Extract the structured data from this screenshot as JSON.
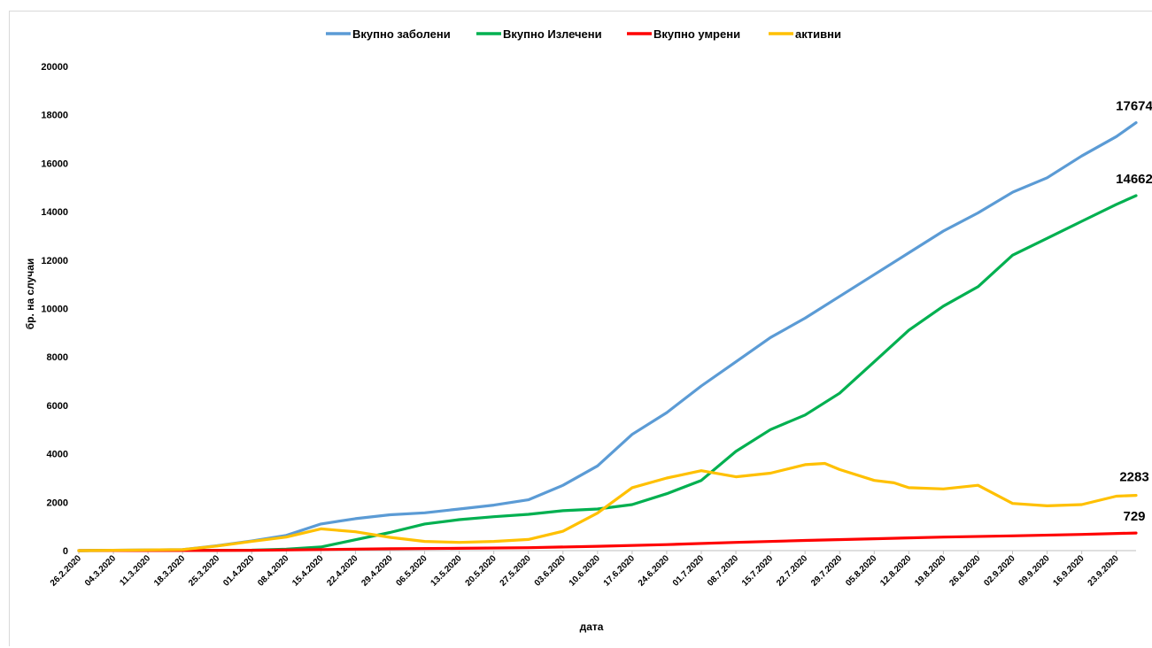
{
  "chart_data": {
    "type": "line",
    "title": "",
    "xlabel": "дата",
    "ylabel": "бр. на случаи",
    "ylim": [
      0,
      20000
    ],
    "yticks": [
      0,
      2000,
      4000,
      6000,
      8000,
      10000,
      12000,
      14000,
      16000,
      18000,
      20000
    ],
    "legend_position": "top",
    "grid": false,
    "x_start": "26.2.2020",
    "x_end": "27.9.2020",
    "x_tick_labels": [
      "26.2.2020",
      "04.3.2020",
      "11.3.2020",
      "18.3.2020",
      "25.3.2020",
      "01.4.2020",
      "08.4.2020",
      "15.4.2020",
      "22.4.2020",
      "29.4.2020",
      "06.5.2020",
      "13.5.2020",
      "20.5.2020",
      "27.5.2020",
      "03.6.2020",
      "10.6.2020",
      "17.6.2020",
      "24.6.2020",
      "01.7.2020",
      "08.7.2020",
      "15.7.2020",
      "22.7.2020",
      "29.7.2020",
      "05.8.2020",
      "12.8.2020",
      "19.8.2020",
      "26.8.2020",
      "02.9.2020",
      "09.9.2020",
      "16.9.2020",
      "23.9.2020"
    ],
    "series": [
      {
        "name": "Вкупно заболени",
        "color": "#5b9bd5",
        "end_label": "17674",
        "points": [
          [
            "26.2.2020",
            0
          ],
          [
            "18.3.2020",
            40
          ],
          [
            "25.3.2020",
            200
          ],
          [
            "01.4.2020",
            400
          ],
          [
            "08.4.2020",
            630
          ],
          [
            "15.4.2020",
            1100
          ],
          [
            "22.4.2020",
            1320
          ],
          [
            "29.4.2020",
            1480
          ],
          [
            "06.5.2020",
            1560
          ],
          [
            "13.5.2020",
            1720
          ],
          [
            "20.5.2020",
            1880
          ],
          [
            "27.5.2020",
            2100
          ],
          [
            "03.6.2020",
            2700
          ],
          [
            "10.6.2020",
            3500
          ],
          [
            "17.6.2020",
            4800
          ],
          [
            "24.6.2020",
            5700
          ],
          [
            "01.7.2020",
            6800
          ],
          [
            "08.7.2020",
            7800
          ],
          [
            "15.7.2020",
            8800
          ],
          [
            "22.7.2020",
            9600
          ],
          [
            "29.7.2020",
            10500
          ],
          [
            "05.8.2020",
            11400
          ],
          [
            "12.8.2020",
            12300
          ],
          [
            "19.8.2020",
            13200
          ],
          [
            "26.8.2020",
            13950
          ],
          [
            "02.9.2020",
            14800
          ],
          [
            "09.9.2020",
            15400
          ],
          [
            "16.9.2020",
            16300
          ],
          [
            "23.9.2020",
            17100
          ],
          [
            "27.9.2020",
            17674
          ]
        ]
      },
      {
        "name": "Вкупно Излечени",
        "color": "#00b050",
        "end_label": "14662",
        "points": [
          [
            "26.2.2020",
            0
          ],
          [
            "01.4.2020",
            20
          ],
          [
            "08.4.2020",
            60
          ],
          [
            "15.4.2020",
            150
          ],
          [
            "22.4.2020",
            450
          ],
          [
            "29.4.2020",
            750
          ],
          [
            "06.5.2020",
            1100
          ],
          [
            "13.5.2020",
            1280
          ],
          [
            "20.5.2020",
            1400
          ],
          [
            "27.5.2020",
            1500
          ],
          [
            "03.6.2020",
            1650
          ],
          [
            "10.6.2020",
            1720
          ],
          [
            "17.6.2020",
            1900
          ],
          [
            "24.6.2020",
            2350
          ],
          [
            "01.7.2020",
            2900
          ],
          [
            "08.7.2020",
            4100
          ],
          [
            "15.7.2020",
            5000
          ],
          [
            "22.7.2020",
            5600
          ],
          [
            "29.7.2020",
            6500
          ],
          [
            "05.8.2020",
            7800
          ],
          [
            "12.8.2020",
            9100
          ],
          [
            "19.8.2020",
            10100
          ],
          [
            "26.8.2020",
            10900
          ],
          [
            "02.9.2020",
            12200
          ],
          [
            "09.9.2020",
            12900
          ],
          [
            "16.9.2020",
            13600
          ],
          [
            "23.9.2020",
            14300
          ],
          [
            "27.9.2020",
            14662
          ]
        ]
      },
      {
        "name": "Вкупно умрени",
        "color": "#ff0000",
        "end_label": "729",
        "points": [
          [
            "26.2.2020",
            0
          ],
          [
            "01.4.2020",
            10
          ],
          [
            "15.4.2020",
            45
          ],
          [
            "29.4.2020",
            75
          ],
          [
            "13.5.2020",
            95
          ],
          [
            "27.5.2020",
            120
          ],
          [
            "10.6.2020",
            180
          ],
          [
            "24.6.2020",
            250
          ],
          [
            "08.7.2020",
            340
          ],
          [
            "22.7.2020",
            420
          ],
          [
            "05.8.2020",
            490
          ],
          [
            "19.8.2020",
            560
          ],
          [
            "02.9.2020",
            610
          ],
          [
            "16.9.2020",
            670
          ],
          [
            "27.9.2020",
            729
          ]
        ]
      },
      {
        "name": "активни",
        "color": "#ffc000",
        "end_label": "2283",
        "points": [
          [
            "26.2.2020",
            0
          ],
          [
            "18.3.2020",
            40
          ],
          [
            "25.3.2020",
            190
          ],
          [
            "01.4.2020",
            380
          ],
          [
            "08.4.2020",
            560
          ],
          [
            "15.4.2020",
            900
          ],
          [
            "22.4.2020",
            780
          ],
          [
            "29.4.2020",
            550
          ],
          [
            "06.5.2020",
            380
          ],
          [
            "13.5.2020",
            340
          ],
          [
            "20.5.2020",
            380
          ],
          [
            "27.5.2020",
            460
          ],
          [
            "03.6.2020",
            800
          ],
          [
            "10.6.2020",
            1550
          ],
          [
            "17.6.2020",
            2600
          ],
          [
            "24.6.2020",
            3000
          ],
          [
            "01.7.2020",
            3300
          ],
          [
            "08.7.2020",
            3050
          ],
          [
            "15.7.2020",
            3200
          ],
          [
            "22.7.2020",
            3550
          ],
          [
            "26.7.2020",
            3600
          ],
          [
            "29.7.2020",
            3350
          ],
          [
            "05.8.2020",
            2900
          ],
          [
            "09.8.2020",
            2800
          ],
          [
            "12.8.2020",
            2600
          ],
          [
            "19.8.2020",
            2550
          ],
          [
            "26.8.2020",
            2700
          ],
          [
            "02.9.2020",
            1950
          ],
          [
            "09.9.2020",
            1850
          ],
          [
            "16.9.2020",
            1900
          ],
          [
            "23.9.2020",
            2250
          ],
          [
            "27.9.2020",
            2283
          ]
        ]
      }
    ]
  }
}
